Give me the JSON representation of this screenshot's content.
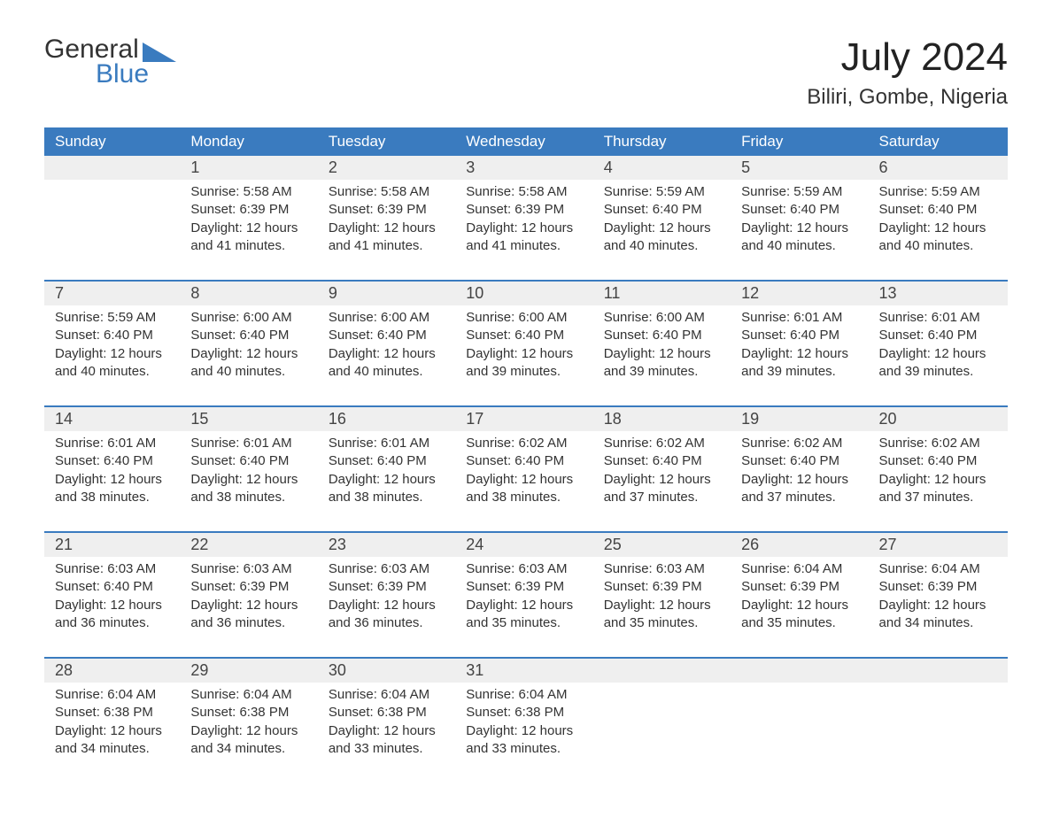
{
  "logo": {
    "word1": "General",
    "word2": "Blue"
  },
  "title": "July 2024",
  "location": "Biliri, Gombe, Nigeria",
  "colors": {
    "header_bg": "#3a7bbf",
    "header_text": "#ffffff",
    "daynum_bg": "#efefef",
    "text": "#333333",
    "sep": "#3a7bbf"
  },
  "columns": [
    "Sunday",
    "Monday",
    "Tuesday",
    "Wednesday",
    "Thursday",
    "Friday",
    "Saturday"
  ],
  "weeks": [
    [
      null,
      {
        "n": "1",
        "sr": "Sunrise: 5:58 AM",
        "ss": "Sunset: 6:39 PM",
        "d1": "Daylight: 12 hours",
        "d2": "and 41 minutes."
      },
      {
        "n": "2",
        "sr": "Sunrise: 5:58 AM",
        "ss": "Sunset: 6:39 PM",
        "d1": "Daylight: 12 hours",
        "d2": "and 41 minutes."
      },
      {
        "n": "3",
        "sr": "Sunrise: 5:58 AM",
        "ss": "Sunset: 6:39 PM",
        "d1": "Daylight: 12 hours",
        "d2": "and 41 minutes."
      },
      {
        "n": "4",
        "sr": "Sunrise: 5:59 AM",
        "ss": "Sunset: 6:40 PM",
        "d1": "Daylight: 12 hours",
        "d2": "and 40 minutes."
      },
      {
        "n": "5",
        "sr": "Sunrise: 5:59 AM",
        "ss": "Sunset: 6:40 PM",
        "d1": "Daylight: 12 hours",
        "d2": "and 40 minutes."
      },
      {
        "n": "6",
        "sr": "Sunrise: 5:59 AM",
        "ss": "Sunset: 6:40 PM",
        "d1": "Daylight: 12 hours",
        "d2": "and 40 minutes."
      }
    ],
    [
      {
        "n": "7",
        "sr": "Sunrise: 5:59 AM",
        "ss": "Sunset: 6:40 PM",
        "d1": "Daylight: 12 hours",
        "d2": "and 40 minutes."
      },
      {
        "n": "8",
        "sr": "Sunrise: 6:00 AM",
        "ss": "Sunset: 6:40 PM",
        "d1": "Daylight: 12 hours",
        "d2": "and 40 minutes."
      },
      {
        "n": "9",
        "sr": "Sunrise: 6:00 AM",
        "ss": "Sunset: 6:40 PM",
        "d1": "Daylight: 12 hours",
        "d2": "and 40 minutes."
      },
      {
        "n": "10",
        "sr": "Sunrise: 6:00 AM",
        "ss": "Sunset: 6:40 PM",
        "d1": "Daylight: 12 hours",
        "d2": "and 39 minutes."
      },
      {
        "n": "11",
        "sr": "Sunrise: 6:00 AM",
        "ss": "Sunset: 6:40 PM",
        "d1": "Daylight: 12 hours",
        "d2": "and 39 minutes."
      },
      {
        "n": "12",
        "sr": "Sunrise: 6:01 AM",
        "ss": "Sunset: 6:40 PM",
        "d1": "Daylight: 12 hours",
        "d2": "and 39 minutes."
      },
      {
        "n": "13",
        "sr": "Sunrise: 6:01 AM",
        "ss": "Sunset: 6:40 PM",
        "d1": "Daylight: 12 hours",
        "d2": "and 39 minutes."
      }
    ],
    [
      {
        "n": "14",
        "sr": "Sunrise: 6:01 AM",
        "ss": "Sunset: 6:40 PM",
        "d1": "Daylight: 12 hours",
        "d2": "and 38 minutes."
      },
      {
        "n": "15",
        "sr": "Sunrise: 6:01 AM",
        "ss": "Sunset: 6:40 PM",
        "d1": "Daylight: 12 hours",
        "d2": "and 38 minutes."
      },
      {
        "n": "16",
        "sr": "Sunrise: 6:01 AM",
        "ss": "Sunset: 6:40 PM",
        "d1": "Daylight: 12 hours",
        "d2": "and 38 minutes."
      },
      {
        "n": "17",
        "sr": "Sunrise: 6:02 AM",
        "ss": "Sunset: 6:40 PM",
        "d1": "Daylight: 12 hours",
        "d2": "and 38 minutes."
      },
      {
        "n": "18",
        "sr": "Sunrise: 6:02 AM",
        "ss": "Sunset: 6:40 PM",
        "d1": "Daylight: 12 hours",
        "d2": "and 37 minutes."
      },
      {
        "n": "19",
        "sr": "Sunrise: 6:02 AM",
        "ss": "Sunset: 6:40 PM",
        "d1": "Daylight: 12 hours",
        "d2": "and 37 minutes."
      },
      {
        "n": "20",
        "sr": "Sunrise: 6:02 AM",
        "ss": "Sunset: 6:40 PM",
        "d1": "Daylight: 12 hours",
        "d2": "and 37 minutes."
      }
    ],
    [
      {
        "n": "21",
        "sr": "Sunrise: 6:03 AM",
        "ss": "Sunset: 6:40 PM",
        "d1": "Daylight: 12 hours",
        "d2": "and 36 minutes."
      },
      {
        "n": "22",
        "sr": "Sunrise: 6:03 AM",
        "ss": "Sunset: 6:39 PM",
        "d1": "Daylight: 12 hours",
        "d2": "and 36 minutes."
      },
      {
        "n": "23",
        "sr": "Sunrise: 6:03 AM",
        "ss": "Sunset: 6:39 PM",
        "d1": "Daylight: 12 hours",
        "d2": "and 36 minutes."
      },
      {
        "n": "24",
        "sr": "Sunrise: 6:03 AM",
        "ss": "Sunset: 6:39 PM",
        "d1": "Daylight: 12 hours",
        "d2": "and 35 minutes."
      },
      {
        "n": "25",
        "sr": "Sunrise: 6:03 AM",
        "ss": "Sunset: 6:39 PM",
        "d1": "Daylight: 12 hours",
        "d2": "and 35 minutes."
      },
      {
        "n": "26",
        "sr": "Sunrise: 6:04 AM",
        "ss": "Sunset: 6:39 PM",
        "d1": "Daylight: 12 hours",
        "d2": "and 35 minutes."
      },
      {
        "n": "27",
        "sr": "Sunrise: 6:04 AM",
        "ss": "Sunset: 6:39 PM",
        "d1": "Daylight: 12 hours",
        "d2": "and 34 minutes."
      }
    ],
    [
      {
        "n": "28",
        "sr": "Sunrise: 6:04 AM",
        "ss": "Sunset: 6:38 PM",
        "d1": "Daylight: 12 hours",
        "d2": "and 34 minutes."
      },
      {
        "n": "29",
        "sr": "Sunrise: 6:04 AM",
        "ss": "Sunset: 6:38 PM",
        "d1": "Daylight: 12 hours",
        "d2": "and 34 minutes."
      },
      {
        "n": "30",
        "sr": "Sunrise: 6:04 AM",
        "ss": "Sunset: 6:38 PM",
        "d1": "Daylight: 12 hours",
        "d2": "and 33 minutes."
      },
      {
        "n": "31",
        "sr": "Sunrise: 6:04 AM",
        "ss": "Sunset: 6:38 PM",
        "d1": "Daylight: 12 hours",
        "d2": "and 33 minutes."
      },
      null,
      null,
      null
    ]
  ]
}
